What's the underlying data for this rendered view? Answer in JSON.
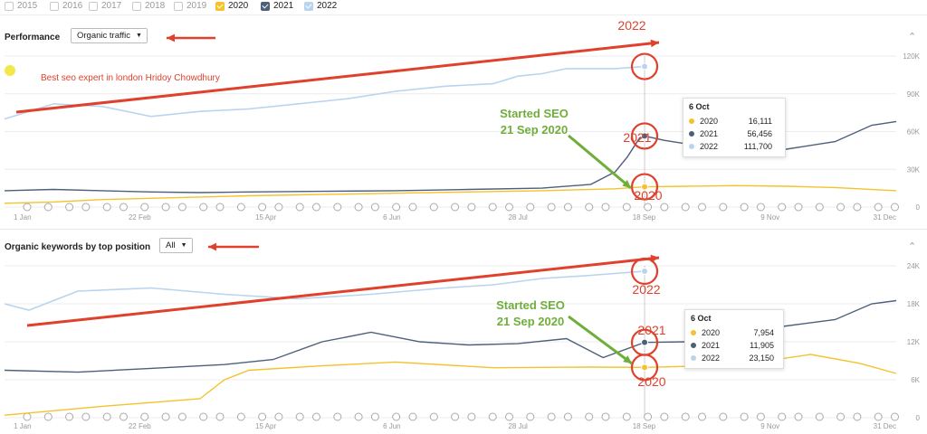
{
  "years": [
    {
      "label": "2015",
      "checked": false,
      "color": ""
    },
    {
      "label": "2016",
      "checked": false,
      "color": ""
    },
    {
      "label": "2017",
      "checked": false,
      "color": ""
    },
    {
      "label": "2018",
      "checked": false,
      "color": ""
    },
    {
      "label": "2019",
      "checked": false,
      "color": ""
    },
    {
      "label": "2020",
      "checked": true,
      "color": "#f5c22b"
    },
    {
      "label": "2021",
      "checked": true,
      "color": "#4e5f7a"
    },
    {
      "label": "2022",
      "checked": true,
      "color": "#b9d4ee"
    }
  ],
  "performance": {
    "title": "Performance",
    "dropdown": "Organic traffic",
    "yticks": [
      "120K",
      "90K",
      "60K",
      "30K",
      "0"
    ],
    "xticks": [
      "1 Jan",
      "22 Feb",
      "15 Apr",
      "6 Jun",
      "28 Jul",
      "18 Sep",
      "9 Nov",
      "31 Dec"
    ],
    "tooltip": {
      "date": "6 Oct",
      "rows": [
        {
          "year": "2020",
          "value": "16,111"
        },
        {
          "year": "2021",
          "value": "56,456"
        },
        {
          "year": "2022",
          "value": "111,700"
        }
      ]
    },
    "annotation_text": "Best seo expert in london Hridoy Chowdhury",
    "started_line1": "Started SEO",
    "started_line2": "21 Sep 2020",
    "labels": {
      "l2022": "2022",
      "l2021": "2021",
      "l2020": "2020"
    }
  },
  "keywords": {
    "title": "Organic keywords by top position",
    "dropdown": "All",
    "yticks": [
      "24K",
      "18K",
      "12K",
      "6K",
      "0"
    ],
    "xticks": [
      "1 Jan",
      "22 Feb",
      "15 Apr",
      "6 Jun",
      "28 Jul",
      "18 Sep",
      "9 Nov",
      "31 Dec"
    ],
    "tooltip": {
      "date": "6 Oct",
      "rows": [
        {
          "year": "2020",
          "value": "7,954"
        },
        {
          "year": "2021",
          "value": "11,905"
        },
        {
          "year": "2022",
          "value": "23,150"
        }
      ]
    },
    "started_line1": "Started SEO",
    "started_line2": "21 Sep 2020",
    "labels": {
      "l2022": "2022",
      "l2021": "2021",
      "l2020": "2020"
    }
  },
  "chart_data": [
    {
      "type": "line",
      "title": "Performance",
      "x_unit": "day of year",
      "ylim": [
        0,
        120000
      ],
      "xticks": [
        "1 Jan",
        "22 Feb",
        "15 Apr",
        "6 Jun",
        "28 Jul",
        "18 Sep",
        "9 Nov",
        "31 Dec"
      ],
      "series": [
        {
          "name": "2020",
          "color": "#f5c22b",
          "x": [
            0,
            20,
            40,
            60,
            80,
            100,
            130,
            160,
            190,
            220,
            250,
            262,
            280,
            300,
            320,
            340,
            365
          ],
          "y": [
            3000,
            4000,
            6000,
            7000,
            8000,
            9000,
            10000,
            11000,
            12000,
            13000,
            14500,
            16111,
            16500,
            17000,
            16500,
            15500,
            13000
          ]
        },
        {
          "name": "2021",
          "color": "#4e5f7a",
          "x": [
            0,
            20,
            40,
            60,
            80,
            100,
            130,
            160,
            190,
            220,
            240,
            250,
            255,
            260,
            262,
            270,
            280,
            300,
            310,
            320,
            340,
            355,
            365
          ],
          "y": [
            13000,
            14000,
            13000,
            12000,
            11500,
            12000,
            12500,
            13000,
            14000,
            15000,
            18000,
            28000,
            40000,
            55000,
            56456,
            53000,
            50000,
            47000,
            42000,
            46000,
            52000,
            65000,
            68000
          ]
        },
        {
          "name": "2022",
          "color": "#b9d4ee",
          "x": [
            0,
            20,
            40,
            60,
            80,
            100,
            120,
            140,
            160,
            180,
            200,
            210,
            220,
            230,
            250,
            262
          ],
          "y": [
            70000,
            82000,
            80000,
            72000,
            76000,
            78000,
            82000,
            86000,
            92000,
            96000,
            98000,
            104000,
            106000,
            110000,
            110000,
            111700
          ]
        }
      ]
    },
    {
      "type": "line",
      "title": "Organic keywords by top position",
      "x_unit": "day of year",
      "ylim": [
        0,
        24000
      ],
      "xticks": [
        "1 Jan",
        "22 Feb",
        "15 Apr",
        "6 Jun",
        "28 Jul",
        "18 Sep",
        "9 Nov",
        "31 Dec"
      ],
      "series": [
        {
          "name": "2020",
          "color": "#f5c22b",
          "x": [
            0,
            40,
            60,
            80,
            90,
            100,
            130,
            160,
            200,
            240,
            262,
            300,
            330,
            350,
            365
          ],
          "y": [
            400,
            1800,
            2400,
            3000,
            6000,
            7500,
            8200,
            8800,
            7900,
            8000,
            7954,
            8300,
            10000,
            8600,
            7000
          ]
        },
        {
          "name": "2021",
          "color": "#4e5f7a",
          "x": [
            0,
            30,
            60,
            90,
            110,
            130,
            150,
            170,
            190,
            210,
            230,
            245,
            262,
            280,
            300,
            320,
            340,
            355,
            365
          ],
          "y": [
            7500,
            7200,
            7800,
            8400,
            9200,
            12000,
            13500,
            12000,
            11500,
            11700,
            12500,
            9500,
            11905,
            12000,
            13500,
            14500,
            15500,
            18000,
            18500
          ]
        },
        {
          "name": "2022",
          "color": "#b9d4ee",
          "x": [
            0,
            10,
            30,
            60,
            90,
            120,
            150,
            180,
            200,
            220,
            240,
            262
          ],
          "y": [
            18000,
            17000,
            20000,
            20500,
            19500,
            18800,
            19500,
            20500,
            21000,
            22000,
            22500,
            23150
          ]
        }
      ]
    }
  ]
}
